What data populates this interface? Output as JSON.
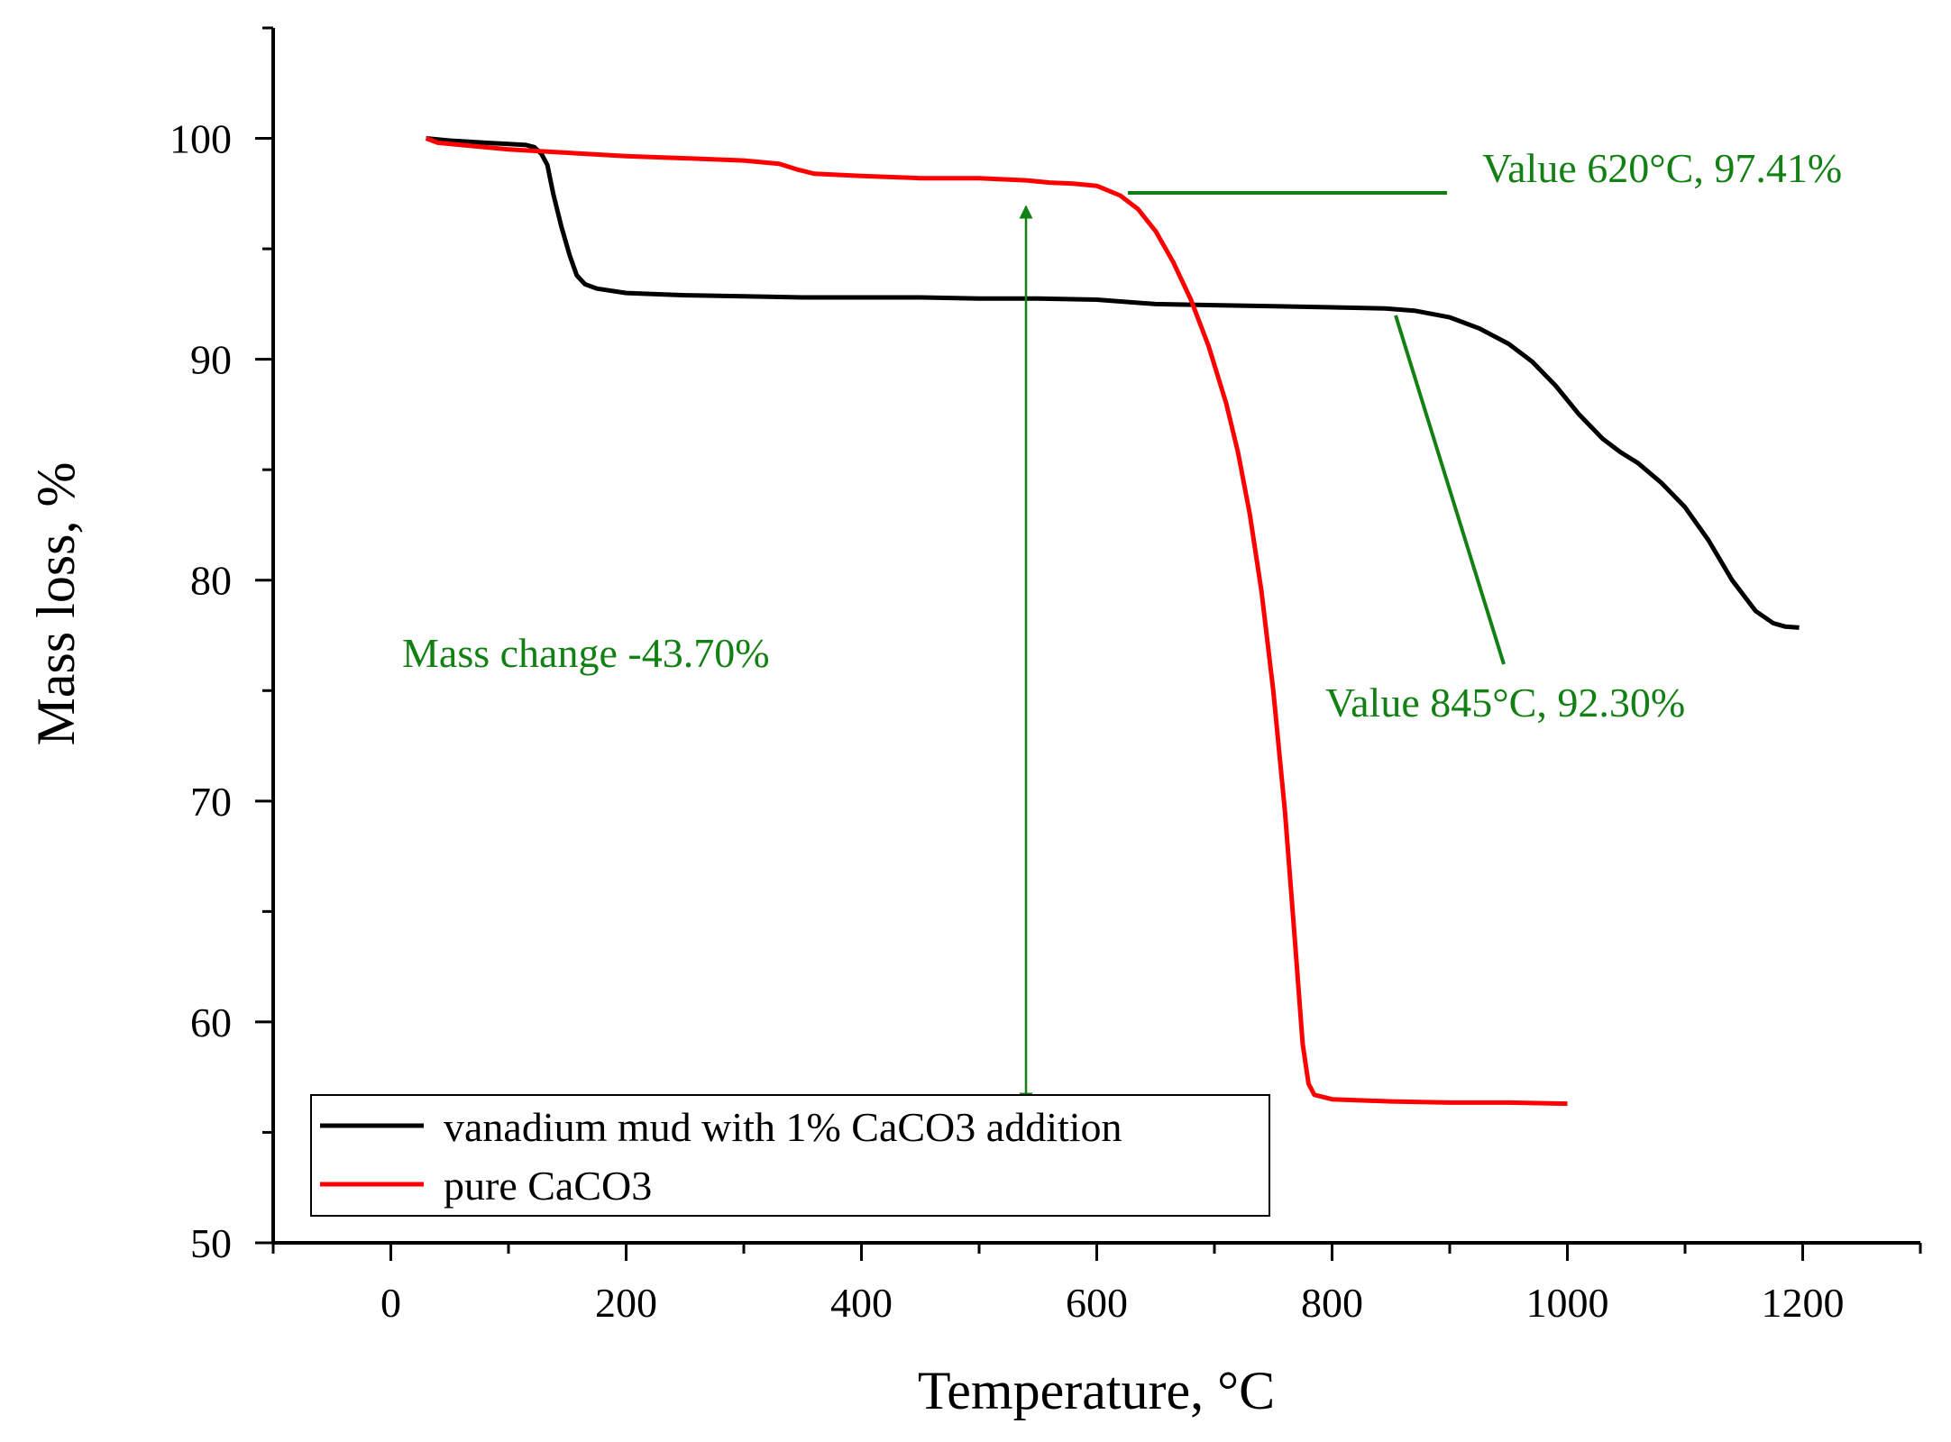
{
  "chart_data": {
    "type": "line",
    "title": "",
    "xlabel": "Temperature, °C",
    "ylabel": "Mass loss, %",
    "xlim": [
      -100,
      1300
    ],
    "ylim": [
      50,
      105
    ],
    "x_ticks": [
      0,
      200,
      400,
      600,
      800,
      1000,
      1200
    ],
    "y_ticks": [
      50,
      60,
      70,
      80,
      90,
      100
    ],
    "x_tick_labels": [
      "0",
      "200",
      "400",
      "600",
      "800",
      "1000",
      "1200"
    ],
    "y_tick_labels": [
      "50",
      "60",
      "70",
      "80",
      "90",
      "100"
    ],
    "grid": false,
    "legend_position": "bottom-left",
    "series": [
      {
        "name": "vanadium mud with 1% CaCO3 addition",
        "color": "#000000",
        "points": [
          [
            30,
            100
          ],
          [
            50,
            99.9
          ],
          [
            80,
            99.8
          ],
          [
            100,
            99.75
          ],
          [
            115,
            99.7
          ],
          [
            122,
            99.6
          ],
          [
            128,
            99.3
          ],
          [
            133,
            98.8
          ],
          [
            138,
            97.5
          ],
          [
            145,
            96
          ],
          [
            152,
            94.7
          ],
          [
            158,
            93.8
          ],
          [
            165,
            93.4
          ],
          [
            175,
            93.2
          ],
          [
            200,
            93.0
          ],
          [
            250,
            92.9
          ],
          [
            300,
            92.85
          ],
          [
            350,
            92.8
          ],
          [
            400,
            92.8
          ],
          [
            450,
            92.8
          ],
          [
            500,
            92.75
          ],
          [
            550,
            92.75
          ],
          [
            600,
            92.7
          ],
          [
            650,
            92.5
          ],
          [
            700,
            92.45
          ],
          [
            750,
            92.4
          ],
          [
            800,
            92.35
          ],
          [
            845,
            92.3
          ],
          [
            870,
            92.2
          ],
          [
            900,
            91.9
          ],
          [
            925,
            91.4
          ],
          [
            950,
            90.7
          ],
          [
            970,
            89.9
          ],
          [
            990,
            88.8
          ],
          [
            1010,
            87.5
          ],
          [
            1030,
            86.4
          ],
          [
            1045,
            85.8
          ],
          [
            1060,
            85.3
          ],
          [
            1080,
            84.4
          ],
          [
            1100,
            83.3
          ],
          [
            1120,
            81.8
          ],
          [
            1140,
            80.0
          ],
          [
            1160,
            78.6
          ],
          [
            1175,
            78.05
          ],
          [
            1185,
            77.9
          ],
          [
            1197,
            77.85
          ]
        ]
      },
      {
        "name": "pure CaCO3",
        "color": "#ff0000",
        "points": [
          [
            30,
            100
          ],
          [
            40,
            99.8
          ],
          [
            60,
            99.7
          ],
          [
            100,
            99.5
          ],
          [
            150,
            99.35
          ],
          [
            200,
            99.2
          ],
          [
            250,
            99.1
          ],
          [
            300,
            99.0
          ],
          [
            330,
            98.85
          ],
          [
            345,
            98.6
          ],
          [
            360,
            98.4
          ],
          [
            400,
            98.3
          ],
          [
            450,
            98.2
          ],
          [
            500,
            98.2
          ],
          [
            540,
            98.1
          ],
          [
            560,
            98.0
          ],
          [
            580,
            97.95
          ],
          [
            600,
            97.85
          ],
          [
            620,
            97.41
          ],
          [
            635,
            96.8
          ],
          [
            650,
            95.8
          ],
          [
            665,
            94.4
          ],
          [
            680,
            92.7
          ],
          [
            695,
            90.6
          ],
          [
            710,
            88.0
          ],
          [
            720,
            85.8
          ],
          [
            730,
            83.0
          ],
          [
            740,
            79.5
          ],
          [
            750,
            75.0
          ],
          [
            760,
            69.5
          ],
          [
            768,
            64.0
          ],
          [
            775,
            59.0
          ],
          [
            780,
            57.2
          ],
          [
            785,
            56.7
          ],
          [
            800,
            56.5
          ],
          [
            850,
            56.4
          ],
          [
            900,
            56.35
          ],
          [
            950,
            56.35
          ],
          [
            1000,
            56.3
          ]
        ]
      }
    ],
    "annotations": [
      {
        "label": "Value 620°C, 97.41%",
        "point": [
          620,
          97.41
        ]
      },
      {
        "label": "Value 845°C, 92.30%",
        "point": [
          845,
          92.3
        ]
      },
      {
        "label": "Mass change -43.70%",
        "from": [
          540,
          98.1
        ],
        "to": [
          540,
          56.4
        ]
      }
    ]
  }
}
